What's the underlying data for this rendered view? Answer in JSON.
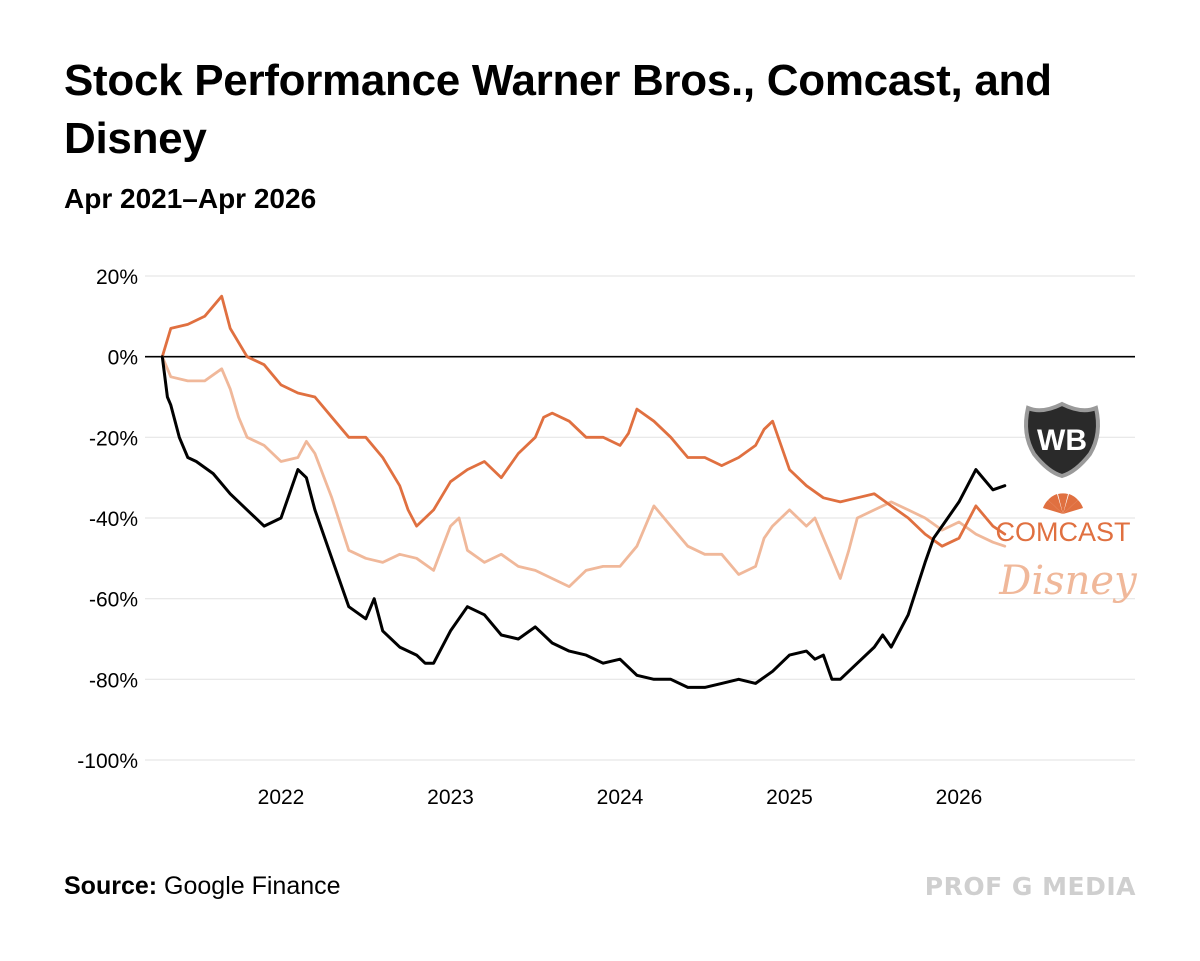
{
  "header": {
    "title": "Stock Performance Warner Bros., Comcast, and Disney",
    "subtitle": "Apr 2021–Apr 2026"
  },
  "footer": {
    "source_label": "Source:",
    "source_value": "Google Finance",
    "brand": "PROF G MEDIA"
  },
  "logos": {
    "wb": "WB",
    "comcast": "COMCAST",
    "disney": "Disney"
  },
  "colors": {
    "wbd": "#000000",
    "comcast": "#e07040",
    "disney": "#f0b89a",
    "grid": "#e6e6e6",
    "zero": "#000000"
  },
  "chart_data": {
    "type": "line",
    "title": "Stock Performance Warner Bros., Comcast, and Disney",
    "subtitle": "Apr 2021–Apr 2026",
    "x_range": [
      2021.3,
      2026.27
    ],
    "ylim": [
      -100,
      20
    ],
    "y_ticks": [
      20,
      0,
      -20,
      -40,
      -60,
      -80,
      -100
    ],
    "y_tick_labels": [
      "20%",
      "0%",
      "-20%",
      "-40%",
      "-60%",
      "-80%",
      "-100%"
    ],
    "x_ticks": [
      2022,
      2023,
      2024,
      2025,
      2026
    ],
    "x_tick_labels": [
      "2022",
      "2023",
      "2024",
      "2025",
      "2026"
    ],
    "grid": true,
    "legend": "logos at right end of lines",
    "series": [
      {
        "key": "wbd",
        "x": [
          2021.3,
          2021.33,
          2021.35,
          2021.4,
          2021.45,
          2021.5,
          2021.6,
          2021.7,
          2021.8,
          2021.9,
          2022.0,
          2022.1,
          2022.15,
          2022.2,
          2022.3,
          2022.35,
          2022.4,
          2022.5,
          2022.55,
          2022.6,
          2022.7,
          2022.8,
          2022.85,
          2022.9,
          2023.0,
          2023.1,
          2023.2,
          2023.3,
          2023.4,
          2023.5,
          2023.6,
          2023.7,
          2023.8,
          2023.9,
          2024.0,
          2024.1,
          2024.2,
          2024.3,
          2024.4,
          2024.5,
          2024.6,
          2024.7,
          2024.8,
          2024.9,
          2025.0,
          2025.1,
          2025.15,
          2025.2,
          2025.25,
          2025.3,
          2025.4,
          2025.5,
          2025.55,
          2025.6,
          2025.7,
          2025.8,
          2025.85,
          2025.9,
          2026.0,
          2026.1,
          2026.2,
          2026.27
        ],
        "y": [
          0,
          -10,
          -12,
          -20,
          -25,
          -26,
          -29,
          -34,
          -38,
          -42,
          -40,
          -28,
          -30,
          -38,
          -50,
          -56,
          -62,
          -65,
          -60,
          -68,
          -72,
          -74,
          -76,
          -76,
          -68,
          -62,
          -64,
          -69,
          -70,
          -67,
          -71,
          -73,
          -74,
          -76,
          -75,
          -79,
          -80,
          -80,
          -82,
          -82,
          -81,
          -80,
          -81,
          -78,
          -74,
          -73,
          -75,
          -74,
          -80,
          -80,
          -76,
          -72,
          -69,
          -72,
          -64,
          -51,
          -45,
          -42,
          -36,
          -28,
          -33,
          -32
        ]
      },
      {
        "key": "comcast",
        "x": [
          2021.3,
          2021.35,
          2021.45,
          2021.55,
          2021.65,
          2021.7,
          2021.8,
          2021.9,
          2022.0,
          2022.1,
          2022.2,
          2022.3,
          2022.4,
          2022.5,
          2022.6,
          2022.7,
          2022.75,
          2022.8,
          2022.9,
          2023.0,
          2023.1,
          2023.2,
          2023.3,
          2023.4,
          2023.5,
          2023.55,
          2023.6,
          2023.7,
          2023.8,
          2023.9,
          2024.0,
          2024.05,
          2024.1,
          2024.2,
          2024.3,
          2024.4,
          2024.5,
          2024.6,
          2024.7,
          2024.8,
          2024.85,
          2024.9,
          2025.0,
          2025.1,
          2025.2,
          2025.3,
          2025.4,
          2025.5,
          2025.6,
          2025.7,
          2025.8,
          2025.9,
          2026.0,
          2026.1,
          2026.2,
          2026.27
        ],
        "y": [
          0,
          7,
          8,
          10,
          15,
          7,
          0,
          -2,
          -7,
          -9,
          -10,
          -15,
          -20,
          -20,
          -25,
          -32,
          -38,
          -42,
          -38,
          -31,
          -28,
          -26,
          -30,
          -24,
          -20,
          -15,
          -14,
          -16,
          -20,
          -20,
          -22,
          -19,
          -13,
          -16,
          -20,
          -25,
          -25,
          -27,
          -25,
          -22,
          -18,
          -16,
          -28,
          -32,
          -35,
          -36,
          -35,
          -34,
          -37,
          -40,
          -44,
          -47,
          -45,
          -37,
          -42,
          -44
        ]
      },
      {
        "key": "disney",
        "x": [
          2021.3,
          2021.35,
          2021.45,
          2021.55,
          2021.65,
          2021.7,
          2021.75,
          2021.8,
          2021.9,
          2022.0,
          2022.1,
          2022.15,
          2022.2,
          2022.3,
          2022.4,
          2022.5,
          2022.6,
          2022.7,
          2022.8,
          2022.9,
          2023.0,
          2023.05,
          2023.1,
          2023.2,
          2023.3,
          2023.4,
          2023.5,
          2023.6,
          2023.7,
          2023.8,
          2023.9,
          2024.0,
          2024.1,
          2024.2,
          2024.3,
          2024.4,
          2024.5,
          2024.6,
          2024.7,
          2024.8,
          2024.85,
          2024.9,
          2025.0,
          2025.1,
          2025.15,
          2025.2,
          2025.25,
          2025.3,
          2025.35,
          2025.4,
          2025.5,
          2025.6,
          2025.7,
          2025.8,
          2025.9,
          2026.0,
          2026.1,
          2026.2,
          2026.27
        ],
        "y": [
          0,
          -5,
          -6,
          -6,
          -3,
          -8,
          -15,
          -20,
          -22,
          -26,
          -25,
          -21,
          -24,
          -35,
          -48,
          -50,
          -51,
          -49,
          -50,
          -53,
          -42,
          -40,
          -48,
          -51,
          -49,
          -52,
          -53,
          -55,
          -57,
          -53,
          -52,
          -52,
          -47,
          -37,
          -42,
          -47,
          -49,
          -49,
          -54,
          -52,
          -45,
          -42,
          -38,
          -42,
          -40,
          -45,
          -50,
          -55,
          -48,
          -40,
          -38,
          -36,
          -38,
          -40,
          -43,
          -41,
          -44,
          -46,
          -47
        ]
      }
    ]
  }
}
